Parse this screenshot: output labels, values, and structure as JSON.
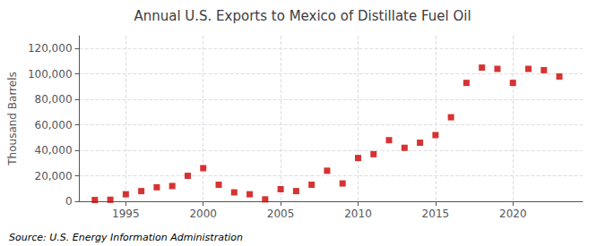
{
  "chart_data": {
    "type": "scatter",
    "title": "Annual U.S. Exports to Mexico of Distillate Fuel Oil",
    "ylabel": "Thousand Barrels",
    "annotations": [
      "Source: U.S. Energy Information Administration"
    ],
    "x": [
      1993,
      1994,
      1995,
      1996,
      1997,
      1998,
      1999,
      2000,
      2001,
      2002,
      2003,
      2004,
      2005,
      2006,
      2007,
      2008,
      2009,
      2010,
      2011,
      2012,
      2013,
      2014,
      2015,
      2016,
      2017,
      2018,
      2019,
      2020,
      2021,
      2022,
      2023
    ],
    "values": [
      1000,
      1200,
      5500,
      8000,
      11000,
      12000,
      20000,
      26000,
      13000,
      7000,
      5500,
      1500,
      9500,
      8000,
      13000,
      24000,
      14000,
      34000,
      37000,
      48000,
      42000,
      46000,
      52000,
      66000,
      93000,
      105000,
      104000,
      93000,
      104000,
      103000,
      98000
    ],
    "color": "#CC0000",
    "marker": "square",
    "xlim": [
      1992,
      2024.5
    ],
    "ylim": [
      0,
      130000
    ],
    "xticks": [
      1995,
      2000,
      2005,
      2010,
      2015,
      2020
    ],
    "yticks": [
      0,
      {
        "value": 20000,
        "label": "20,000"
      },
      {
        "value": 40000,
        "label": "40,000"
      },
      {
        "value": 60000,
        "label": "60,000"
      },
      {
        "value": 80000,
        "label": "80,000"
      },
      {
        "value": 100000,
        "label": "100,000"
      },
      {
        "value": 120000,
        "label": "120,000"
      }
    ],
    "grid": true
  }
}
